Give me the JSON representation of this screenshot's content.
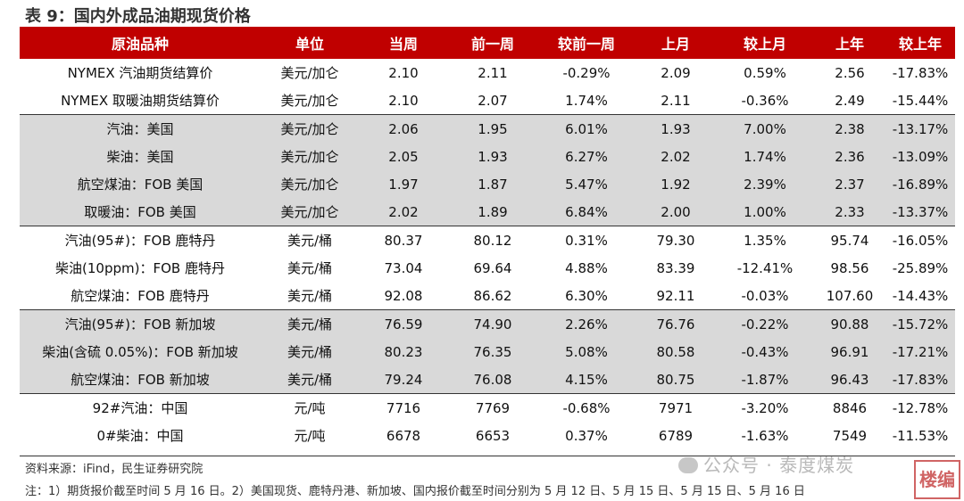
{
  "title": "表 9：国内外成品油期现货价格",
  "headers": [
    "原油品种",
    "单位",
    "当周",
    "前一周",
    "较前一周",
    "上月",
    "较上月",
    "上年",
    "较上年"
  ],
  "rows": [
    [
      "NYMEX 汽油期货结算价",
      "美元/加仑",
      "2.10",
      "2.11",
      "-0.29%",
      "2.09",
      "0.59%",
      "2.56",
      "-17.83%"
    ],
    [
      "NYMEX 取暖油期货结算价",
      "美元/加仑",
      "2.10",
      "2.07",
      "1.74%",
      "2.11",
      "-0.36%",
      "2.49",
      "-15.44%"
    ],
    [
      "汽油：美国",
      "美元/加仑",
      "2.06",
      "1.95",
      "6.01%",
      "1.93",
      "7.00%",
      "2.38",
      "-13.17%"
    ],
    [
      "柴油：美国",
      "美元/加仑",
      "2.05",
      "1.93",
      "6.27%",
      "2.02",
      "1.74%",
      "2.36",
      "-13.09%"
    ],
    [
      "航空煤油：FOB 美国",
      "美元/加仑",
      "1.97",
      "1.87",
      "5.47%",
      "1.92",
      "2.39%",
      "2.37",
      "-16.89%"
    ],
    [
      "取暖油：FOB 美国",
      "美元/加仑",
      "2.02",
      "1.89",
      "6.84%",
      "2.00",
      "1.00%",
      "2.33",
      "-13.37%"
    ],
    [
      "汽油(95#)：FOB 鹿特丹",
      "美元/桶",
      "80.37",
      "80.12",
      "0.31%",
      "79.30",
      "1.35%",
      "95.74",
      "-16.05%"
    ],
    [
      "柴油(10ppm)：FOB 鹿特丹",
      "美元/桶",
      "73.04",
      "69.64",
      "4.88%",
      "83.39",
      "-12.41%",
      "98.56",
      "-25.89%"
    ],
    [
      "航空煤油：FOB 鹿特丹",
      "美元/桶",
      "92.08",
      "86.62",
      "6.30%",
      "92.11",
      "-0.03%",
      "107.60",
      "-14.43%"
    ],
    [
      "汽油(95#)：FOB 新加坡",
      "美元/桶",
      "76.59",
      "74.90",
      "2.26%",
      "76.76",
      "-0.22%",
      "90.88",
      "-15.72%"
    ],
    [
      "柴油(含硫 0.05%)：FOB 新加坡",
      "美元/桶",
      "80.23",
      "76.35",
      "5.08%",
      "80.58",
      "-0.43%",
      "96.91",
      "-17.21%"
    ],
    [
      "航空煤油：FOB 新加坡",
      "美元/桶",
      "79.24",
      "76.08",
      "4.15%",
      "80.75",
      "-1.87%",
      "96.43",
      "-17.83%"
    ],
    [
      "92#汽油：中国",
      "元/吨",
      "7716",
      "7769",
      "-0.68%",
      "7971",
      "-3.20%",
      "8846",
      "-12.78%"
    ],
    [
      "0#柴油：中国",
      "元/吨",
      "6678",
      "6653",
      "0.37%",
      "6789",
      "-1.63%",
      "7549",
      "-11.53%"
    ]
  ],
  "source": "资料来源：iFind，民生证券研究院",
  "note": "注：1）期货报价截至时间 5 月 16 日。2）美国现货、鹿特丹港、新加坡、国内报价截至时间分别为 5 月 12 日、5 月 15 日、5 月 15 日、5 月 16 日",
  "watermark": "公众号 · 泰度煤炭",
  "stamp": "楼编",
  "colors": {
    "header_bg": "#c00000",
    "positive": "#e0141e",
    "negative": "#1a9a1a",
    "shade": "#d9d9d9"
  }
}
